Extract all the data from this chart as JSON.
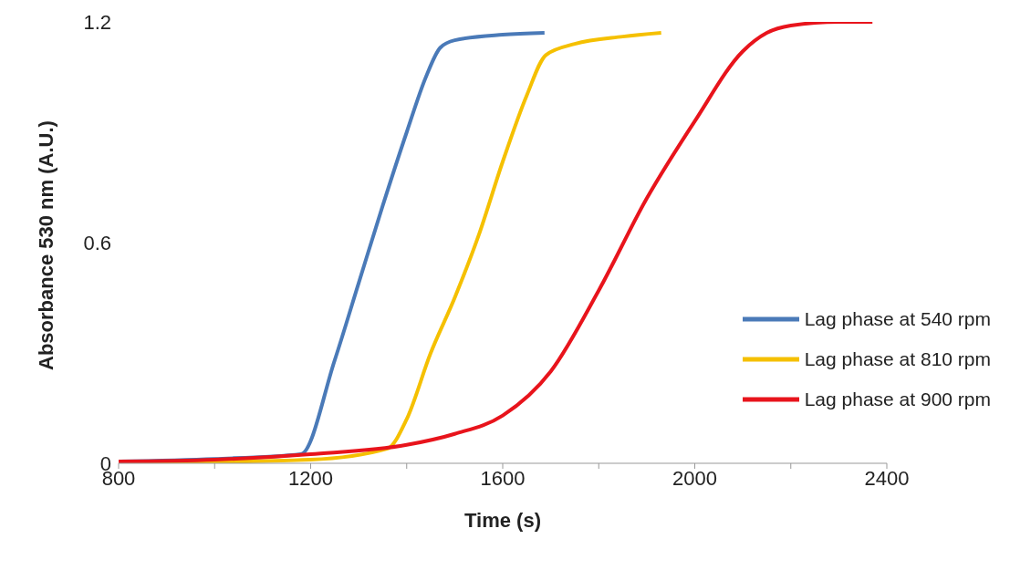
{
  "chart_data": {
    "type": "line",
    "xlabel": "Time (s)",
    "ylabel": "Absorbance 530 nm (A.U.)",
    "xlim": [
      800,
      2400
    ],
    "ylim": [
      0,
      1.2
    ],
    "xticks": [
      800,
      {
        "value": 1000,
        "label": null
      },
      1200,
      {
        "value": 1400,
        "label": null
      },
      1600,
      {
        "value": 1800,
        "label": null
      },
      2000,
      {
        "value": 2200,
        "label": null
      },
      2400
    ],
    "yticks": [
      0,
      0.6,
      1.2
    ],
    "grid": false,
    "legend": "right",
    "marker": "none",
    "line_style": "solid",
    "series": [
      {
        "name": "Lag phase at 540 rpm",
        "color": "#4a7ab8",
        "x": [
          800,
          1000,
          1180,
          1250,
          1300,
          1350,
          1400,
          1440,
          1470,
          1500,
          1600,
          1687
        ],
        "values": [
          0.005,
          0.012,
          0.025,
          0.28,
          0.49,
          0.7,
          0.9,
          1.05,
          1.13,
          1.15,
          1.165,
          1.17
        ]
      },
      {
        "name": "Lag phase at 810 rpm",
        "color": "#f5c000",
        "x": [
          800,
          1200,
          1360,
          1400,
          1450,
          1500,
          1550,
          1600,
          1650,
          1690,
          1750,
          1850,
          1930
        ],
        "values": [
          0,
          0.01,
          0.04,
          0.12,
          0.3,
          0.45,
          0.62,
          0.82,
          1.0,
          1.11,
          1.14,
          1.16,
          1.17
        ]
      },
      {
        "name": "Lag phase at 900 rpm",
        "color": "#e8141c",
        "x": [
          800,
          1000,
          1200,
          1400,
          1500,
          1600,
          1700,
          1800,
          1900,
          2000,
          2100,
          2150,
          2200,
          2300,
          2370
        ],
        "values": [
          0.005,
          0.01,
          0.025,
          0.05,
          0.08,
          0.13,
          0.25,
          0.47,
          0.72,
          0.93,
          1.12,
          1.17,
          1.19,
          1.2,
          1.2
        ]
      }
    ]
  }
}
